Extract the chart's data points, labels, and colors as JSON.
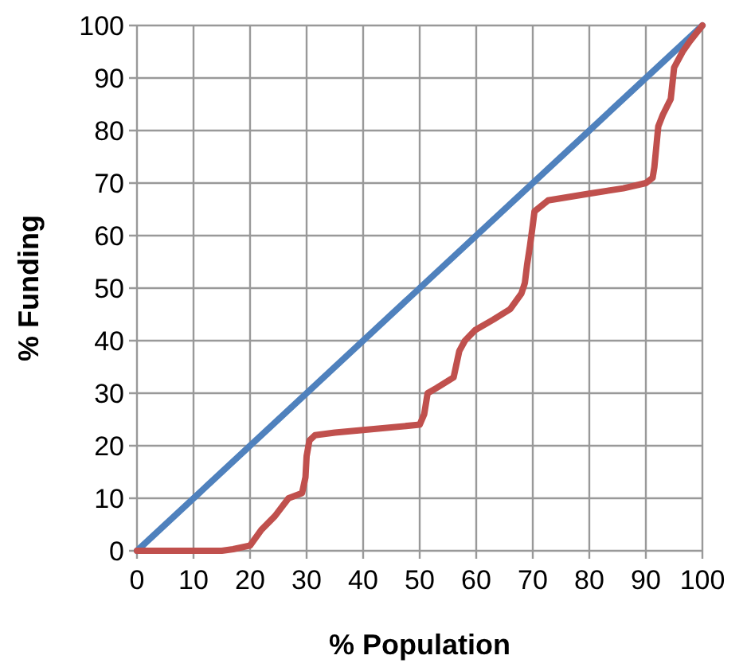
{
  "chart_data": {
    "type": "line",
    "xlabel": "% Population",
    "ylabel": "% Funding",
    "xlim": [
      0,
      100
    ],
    "ylim": [
      0,
      100
    ],
    "xticks": [
      0,
      10,
      20,
      30,
      40,
      50,
      60,
      70,
      80,
      90,
      100
    ],
    "yticks": [
      0,
      10,
      20,
      30,
      40,
      50,
      60,
      70,
      80,
      90,
      100
    ],
    "grid": true,
    "series": [
      {
        "color": "#4f81bd",
        "x": [
          0,
          100
        ],
        "values": [
          0,
          100
        ]
      },
      {
        "color": "#c0504d",
        "x": [
          0,
          15,
          17,
          20,
          22,
          24.4,
          26.8,
          28,
          29.2,
          29.8,
          30,
          30.5,
          31.5,
          35,
          40,
          50,
          50.8,
          51.4,
          53,
          56,
          57,
          58,
          59.8,
          63,
          66,
          68,
          68.6,
          69,
          69.5,
          70,
          70.3,
          72.7,
          80,
          86,
          90,
          91.2,
          91.5,
          92.2,
          93,
          94.4,
          95,
          96.5,
          97.8,
          100
        ],
        "values": [
          0,
          0,
          0.3,
          1,
          4,
          6.6,
          10,
          10.5,
          11,
          14,
          18,
          21,
          22,
          22.5,
          23,
          24,
          26,
          30,
          31,
          33,
          38,
          40,
          42,
          44,
          46,
          49,
          51,
          54.5,
          58,
          62,
          64.6,
          66.7,
          68,
          69,
          70,
          71,
          73,
          80.8,
          83,
          86,
          92,
          95,
          97,
          100
        ]
      }
    ]
  }
}
